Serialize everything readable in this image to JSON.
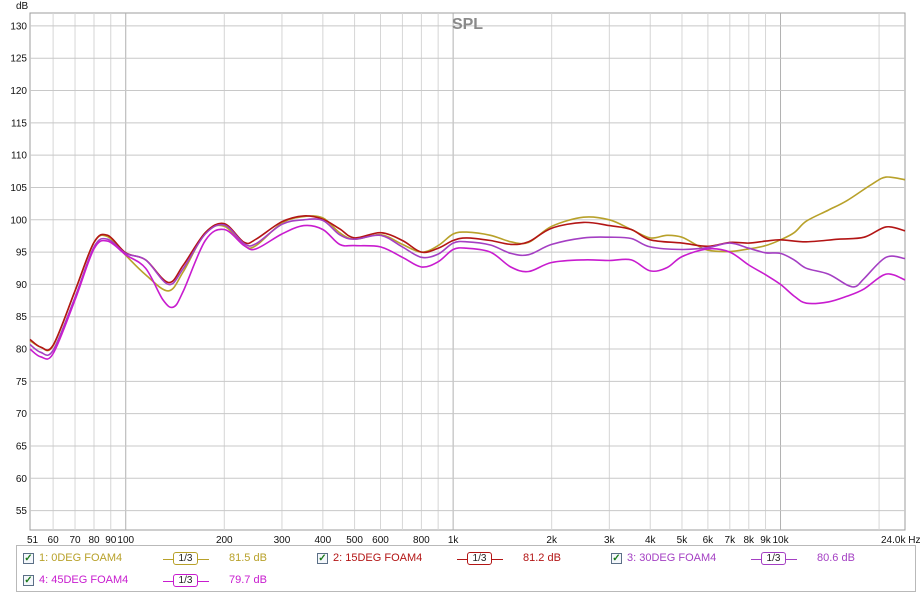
{
  "chart_data": {
    "type": "line",
    "title": "SPL",
    "ylabel": "dB",
    "xunit": "Hz",
    "xscale": "log",
    "xlim": [
      51,
      24000
    ],
    "ylim": [
      52,
      132
    ],
    "grid": true,
    "legend_placement": "bottom",
    "y_ticks": [
      55,
      60,
      65,
      70,
      75,
      80,
      85,
      90,
      95,
      100,
      105,
      110,
      115,
      120,
      125,
      130
    ],
    "x_ticks": [
      {
        "v": 51,
        "label": "51"
      },
      {
        "v": 60,
        "label": "60"
      },
      {
        "v": 70,
        "label": "70"
      },
      {
        "v": 80,
        "label": "80"
      },
      {
        "v": 90,
        "label": "90"
      },
      {
        "v": 100,
        "label": "100"
      },
      {
        "v": 200,
        "label": "200"
      },
      {
        "v": 300,
        "label": "300"
      },
      {
        "v": 400,
        "label": "400"
      },
      {
        "v": 500,
        "label": "500"
      },
      {
        "v": 600,
        "label": "600"
      },
      {
        "v": 800,
        "label": "800"
      },
      {
        "v": 1000,
        "label": "1k"
      },
      {
        "v": 2000,
        "label": "2k"
      },
      {
        "v": 3000,
        "label": "3k"
      },
      {
        "v": 4000,
        "label": "4k"
      },
      {
        "v": 5000,
        "label": "5k"
      },
      {
        "v": 6000,
        "label": "6k"
      },
      {
        "v": 7000,
        "label": "7k"
      },
      {
        "v": 8000,
        "label": "8k"
      },
      {
        "v": 9000,
        "label": "9k"
      },
      {
        "v": 10000,
        "label": "10k"
      },
      {
        "v": 24000,
        "label": "24.0k Hz"
      }
    ],
    "series": [
      {
        "name": "1: 0DEG FOAM4",
        "color": "#b8a12a",
        "avg": "81.5 dB",
        "smoothing": "1/3",
        "points": [
          [
            51,
            81.3
          ],
          [
            55,
            80.3
          ],
          [
            60,
            80.5
          ],
          [
            70,
            89
          ],
          [
            80,
            96.5
          ],
          [
            88,
            97.4
          ],
          [
            100,
            94.5
          ],
          [
            115,
            91.5
          ],
          [
            135,
            89
          ],
          [
            150,
            92
          ],
          [
            175,
            98
          ],
          [
            200,
            99
          ],
          [
            230,
            96
          ],
          [
            250,
            96
          ],
          [
            300,
            99.5
          ],
          [
            350,
            100.5
          ],
          [
            400,
            100.3
          ],
          [
            450,
            98
          ],
          [
            500,
            97
          ],
          [
            600,
            97.7
          ],
          [
            700,
            96.2
          ],
          [
            800,
            95
          ],
          [
            900,
            96
          ],
          [
            1000,
            97.8
          ],
          [
            1100,
            98.1
          ],
          [
            1300,
            97.6
          ],
          [
            1500,
            96.6
          ],
          [
            1700,
            96.5
          ],
          [
            2000,
            99
          ],
          [
            2500,
            100.4
          ],
          [
            3000,
            100
          ],
          [
            3500,
            98.5
          ],
          [
            4000,
            97.2
          ],
          [
            4500,
            97.6
          ],
          [
            5000,
            97.3
          ],
          [
            5500,
            96.2
          ],
          [
            6000,
            95.3
          ],
          [
            7000,
            95.1
          ],
          [
            8000,
            95.5
          ],
          [
            9000,
            96
          ],
          [
            10000,
            96.9
          ],
          [
            11000,
            98
          ],
          [
            12000,
            99.8
          ],
          [
            14000,
            101.5
          ],
          [
            16000,
            103
          ],
          [
            19000,
            105.5
          ],
          [
            21000,
            106.6
          ],
          [
            24000,
            106.2
          ]
        ]
      },
      {
        "name": "2: 15DEG FOAM4",
        "color": "#b31515",
        "avg": "81.2 dB",
        "smoothing": "1/3",
        "points": [
          [
            51,
            81.5
          ],
          [
            55,
            80.3
          ],
          [
            60,
            80.6
          ],
          [
            70,
            89
          ],
          [
            80,
            96.5
          ],
          [
            88,
            97.6
          ],
          [
            100,
            94.9
          ],
          [
            115,
            93.8
          ],
          [
            135,
            90.3
          ],
          [
            150,
            93
          ],
          [
            175,
            98
          ],
          [
            200,
            99.4
          ],
          [
            230,
            96.5
          ],
          [
            250,
            97
          ],
          [
            300,
            99.7
          ],
          [
            350,
            100.6
          ],
          [
            400,
            100.1
          ],
          [
            450,
            98.6
          ],
          [
            500,
            97.2
          ],
          [
            600,
            98
          ],
          [
            700,
            96.8
          ],
          [
            800,
            95
          ],
          [
            900,
            95.6
          ],
          [
            1000,
            96.8
          ],
          [
            1100,
            97.2
          ],
          [
            1300,
            96.8
          ],
          [
            1500,
            96.2
          ],
          [
            1700,
            96.6
          ],
          [
            2000,
            98.7
          ],
          [
            2500,
            99.6
          ],
          [
            3000,
            99.1
          ],
          [
            3500,
            98.5
          ],
          [
            4000,
            96.9
          ],
          [
            5000,
            96.4
          ],
          [
            6000,
            95.9
          ],
          [
            7000,
            96.5
          ],
          [
            8000,
            96.4
          ],
          [
            9000,
            96.7
          ],
          [
            10000,
            96.9
          ],
          [
            12000,
            96.6
          ],
          [
            15000,
            97
          ],
          [
            18000,
            97.3
          ],
          [
            21000,
            98.9
          ],
          [
            24000,
            98.3
          ]
        ]
      },
      {
        "name": "3: 30DEG FOAM4",
        "color": "#a43fc3",
        "avg": "80.6 dB",
        "smoothing": "1/3",
        "points": [
          [
            51,
            80.7
          ],
          [
            55,
            79.5
          ],
          [
            60,
            79.8
          ],
          [
            70,
            88
          ],
          [
            80,
            95.8
          ],
          [
            88,
            97
          ],
          [
            100,
            94.8
          ],
          [
            115,
            93.8
          ],
          [
            135,
            90
          ],
          [
            150,
            92.5
          ],
          [
            175,
            97.8
          ],
          [
            200,
            99.2
          ],
          [
            230,
            96.3
          ],
          [
            250,
            96.3
          ],
          [
            300,
            99.3
          ],
          [
            350,
            100
          ],
          [
            400,
            99.9
          ],
          [
            450,
            97.7
          ],
          [
            500,
            97
          ],
          [
            600,
            97.6
          ],
          [
            700,
            95.8
          ],
          [
            800,
            94.2
          ],
          [
            900,
            94.7
          ],
          [
            1000,
            96.4
          ],
          [
            1100,
            96.6
          ],
          [
            1300,
            96.1
          ],
          [
            1500,
            94.8
          ],
          [
            1700,
            94.6
          ],
          [
            2000,
            96.2
          ],
          [
            2500,
            97.2
          ],
          [
            3000,
            97.3
          ],
          [
            3500,
            97.1
          ],
          [
            4000,
            95.8
          ],
          [
            5000,
            95.4
          ],
          [
            6000,
            95.7
          ],
          [
            7000,
            96.4
          ],
          [
            8000,
            95.6
          ],
          [
            9000,
            94.9
          ],
          [
            10000,
            94.8
          ],
          [
            11000,
            93.8
          ],
          [
            12000,
            92.5
          ],
          [
            14000,
            91.6
          ],
          [
            16000,
            89.9
          ],
          [
            17000,
            89.7
          ],
          [
            18000,
            90.9
          ],
          [
            21000,
            94.2
          ],
          [
            24000,
            94
          ]
        ]
      },
      {
        "name": "4: 45DEG FOAM4",
        "color": "#c81ccf",
        "avg": "79.7 dB",
        "smoothing": "1/3",
        "points": [
          [
            51,
            80
          ],
          [
            55,
            78.8
          ],
          [
            60,
            79.3
          ],
          [
            70,
            87.6
          ],
          [
            80,
            95.5
          ],
          [
            88,
            96.7
          ],
          [
            100,
            94.6
          ],
          [
            115,
            92.5
          ],
          [
            130,
            87.6
          ],
          [
            140,
            86.5
          ],
          [
            150,
            89
          ],
          [
            175,
            96.8
          ],
          [
            200,
            98.5
          ],
          [
            230,
            96
          ],
          [
            250,
            95.5
          ],
          [
            300,
            97.8
          ],
          [
            350,
            99.1
          ],
          [
            400,
            98.5
          ],
          [
            450,
            96.2
          ],
          [
            500,
            96
          ],
          [
            600,
            95.8
          ],
          [
            700,
            94.2
          ],
          [
            800,
            92.7
          ],
          [
            900,
            93.5
          ],
          [
            1000,
            95.4
          ],
          [
            1100,
            95.6
          ],
          [
            1300,
            95
          ],
          [
            1500,
            92.7
          ],
          [
            1700,
            92
          ],
          [
            2000,
            93.4
          ],
          [
            2500,
            93.8
          ],
          [
            3000,
            93.7
          ],
          [
            3500,
            93.8
          ],
          [
            4000,
            92.1
          ],
          [
            4500,
            92.6
          ],
          [
            5000,
            94.3
          ],
          [
            6000,
            95.5
          ],
          [
            7000,
            95
          ],
          [
            8000,
            93
          ],
          [
            9000,
            91.5
          ],
          [
            10000,
            90
          ],
          [
            11000,
            88.2
          ],
          [
            12000,
            87.1
          ],
          [
            14000,
            87.3
          ],
          [
            16000,
            88.2
          ],
          [
            18000,
            89.3
          ],
          [
            21000,
            91.6
          ],
          [
            24000,
            90.7
          ]
        ]
      }
    ]
  }
}
